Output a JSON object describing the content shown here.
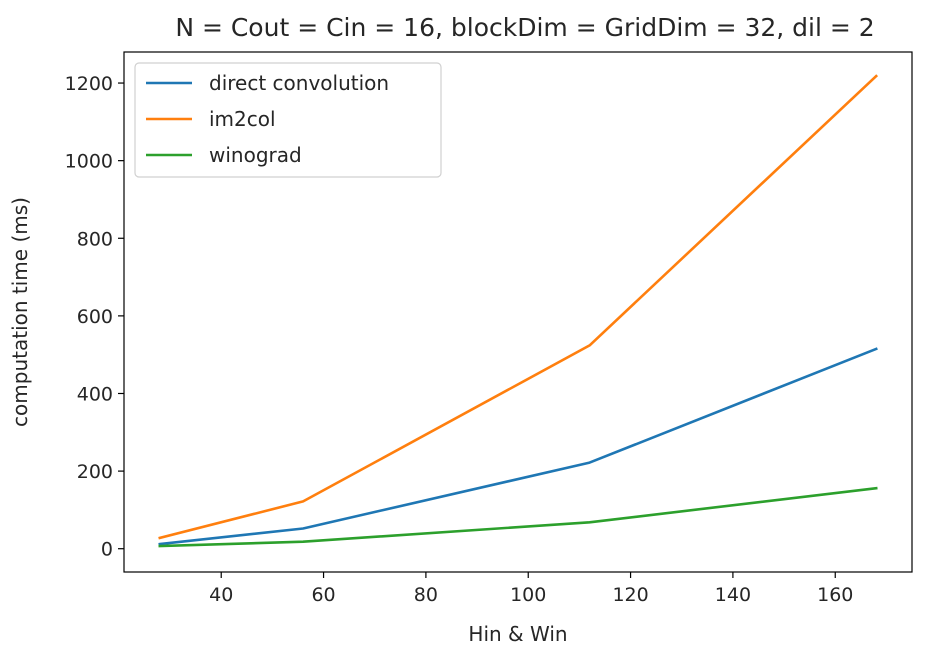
{
  "chart_data": {
    "type": "line",
    "title": "N = Cout = Cin = 16, blockDim = GridDim = 32, dil = 2",
    "xlabel": "Hin & Win",
    "ylabel": "computation time (ms)",
    "x": [
      28,
      56,
      112,
      168
    ],
    "series": [
      {
        "name": "direct convolution",
        "color": "#1f77b4",
        "values": [
          12,
          52,
          222,
          515
        ]
      },
      {
        "name": "im2col",
        "color": "#ff7f0e",
        "values": [
          28,
          122,
          524,
          1218
        ]
      },
      {
        "name": "winograd",
        "color": "#2ca02c",
        "values": [
          7,
          18,
          68,
          156
        ]
      }
    ],
    "xlim": [
      21,
      175
    ],
    "ylim": [
      -60,
      1280
    ],
    "xticks": [
      40,
      60,
      80,
      100,
      120,
      140,
      160
    ],
    "yticks": [
      0,
      200,
      400,
      600,
      800,
      1000,
      1200
    ],
    "grid": false,
    "legend_position": "upper-left"
  }
}
